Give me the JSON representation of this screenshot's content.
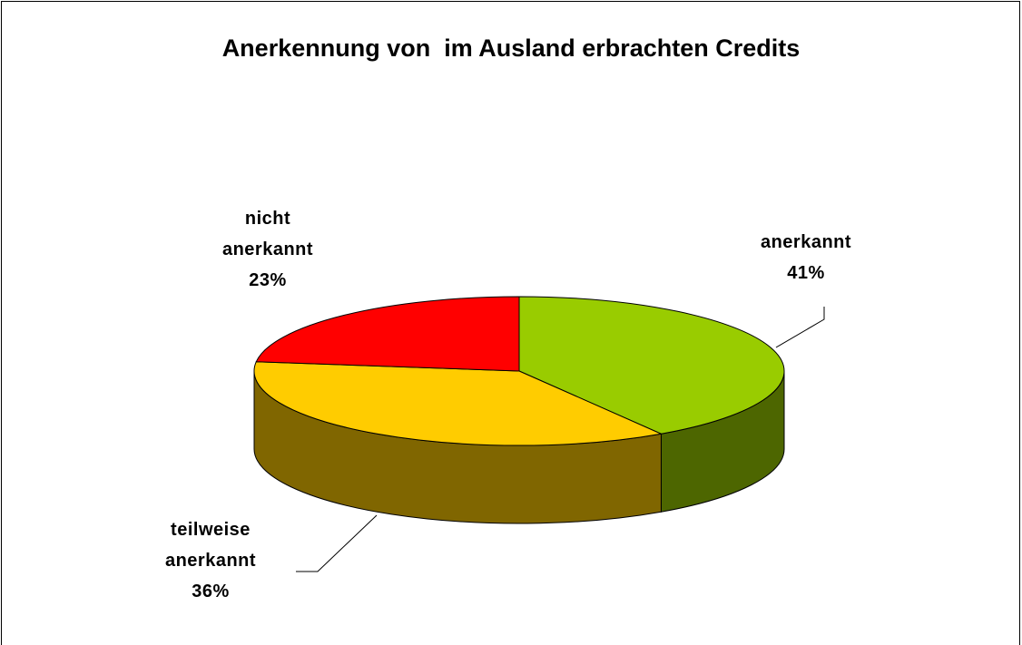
{
  "chart_data": {
    "type": "pie",
    "title": "Anerkennung von  im Ausland erbrachten Credits",
    "categories": [
      "anerkannt",
      "teilweise anerkannt",
      "nicht anerkannt"
    ],
    "values": [
      41,
      36,
      23
    ],
    "value_labels": [
      "41%",
      "36%",
      "23%"
    ],
    "colors": [
      "#99cc00",
      "#ffcc00",
      "#ff0000"
    ]
  }
}
